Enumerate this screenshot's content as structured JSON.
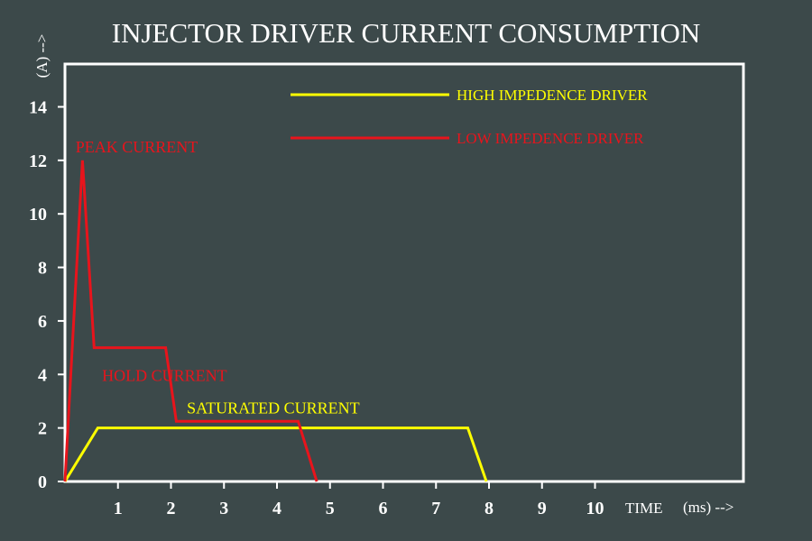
{
  "chart_data": {
    "type": "line",
    "title": "INJECTOR DRIVER CURRENT CONSUMPTION",
    "xlabel": "TIME",
    "xunit": "(ms) -->",
    "ylabel": "(A) -->",
    "xlim": [
      0,
      12.8
    ],
    "ylim": [
      0,
      15.6
    ],
    "xticks": [
      1,
      2,
      3,
      4,
      5,
      6,
      7,
      8,
      9,
      10
    ],
    "yticks": [
      0,
      2,
      4,
      6,
      8,
      10,
      12,
      14
    ],
    "grid": false,
    "legend_position": "top-right",
    "series": [
      {
        "name": "HIGH IMPEDENCE DRIVER",
        "color": "#ffff00",
        "x": [
          0,
          0.62,
          7.6,
          7.95
        ],
        "y": [
          0,
          2.0,
          2.0,
          0
        ]
      },
      {
        "name": "LOW IMPEDENCE DRIVER",
        "color": "#e8141c",
        "x": [
          0,
          0.33,
          0.55,
          1.9,
          2.1,
          4.4,
          4.75
        ],
        "y": [
          0,
          12.0,
          5.0,
          5.0,
          2.25,
          2.25,
          0
        ]
      }
    ],
    "annotations": [
      {
        "text": "PEAK CURRENT",
        "x": 0.2,
        "y": 12.3,
        "color": "#e8141c"
      },
      {
        "text": "HOLD CURRENT",
        "x": 0.7,
        "y": 3.75,
        "color": "#e8141c"
      },
      {
        "text": "SATURATED CURRENT",
        "x": 2.3,
        "y": 2.55,
        "color": "#ffff00"
      }
    ]
  }
}
